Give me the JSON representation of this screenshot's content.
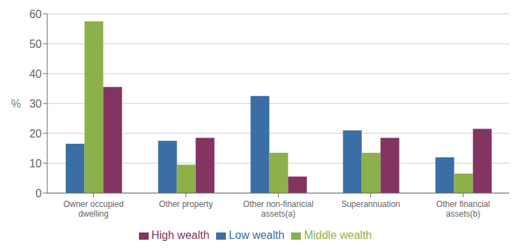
{
  "chart_data": {
    "type": "bar",
    "categories": [
      "Owner occupied\ndwelling",
      "Other property",
      "Other non-financial\nassets(a)",
      "Superannuation",
      "Other financial\nassets(b)"
    ],
    "series": [
      {
        "name": "Low wealth",
        "color": "#3B6EA5",
        "values": [
          16.5,
          17.5,
          32.5,
          21.0,
          12.0
        ]
      },
      {
        "name": "Middle wealth",
        "color": "#8DB14A",
        "values": [
          57.5,
          9.5,
          13.5,
          13.5,
          6.5
        ]
      },
      {
        "name": "High wealth",
        "color": "#833460",
        "values": [
          35.5,
          18.5,
          5.5,
          18.5,
          21.5
        ]
      }
    ],
    "ylabel": "%",
    "ylim": [
      0,
      60
    ],
    "yticks": [
      0,
      10,
      20,
      30,
      40,
      50,
      60
    ],
    "grid": true,
    "legend": "bottom"
  }
}
